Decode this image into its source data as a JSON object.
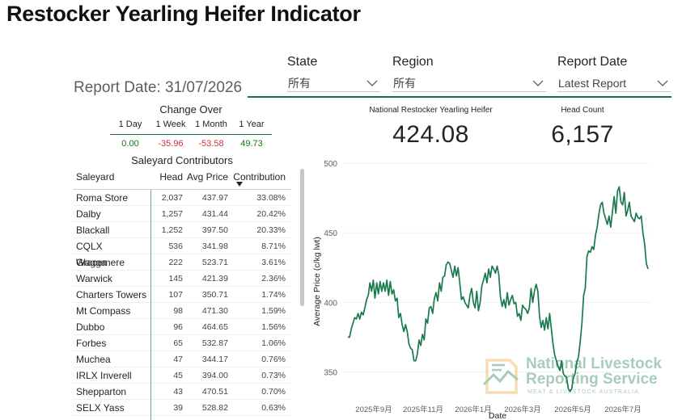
{
  "title": "Restocker Yearling Heifer Indicator",
  "filters": [
    {
      "label": "State",
      "value": "所有"
    },
    {
      "label": "Region",
      "value": "所有"
    },
    {
      "label": "Report Date",
      "value": "Latest Report"
    }
  ],
  "report_date": "Report Date: 31/07/2026",
  "change_over": {
    "title": "Change Over",
    "headers": [
      "1 Day",
      "1 Week",
      "1 Month",
      "1 Year"
    ],
    "values": [
      "0.00",
      "-35.96",
      "-53.58",
      "49.73"
    ]
  },
  "kpis": {
    "indicator_label": "National Restocker Yearling Heifer",
    "indicator_value": "424.08",
    "head_label": "Head Count",
    "head_value": "6,157"
  },
  "saleyard": {
    "title": "Saleyard Contributors",
    "columns": [
      "Saleyard",
      "Head",
      "Avg Price",
      "Contribution"
    ],
    "rows": [
      [
        "Roma Store",
        "2,037",
        "437.97",
        "33.08%"
      ],
      [
        "Dalby",
        "1,257",
        "431.44",
        "20.42%"
      ],
      [
        "Blackall",
        "1,252",
        "397.50",
        "20.33%"
      ],
      [
        "CQLX Gracemere",
        "536",
        "341.98",
        "8.71%"
      ],
      [
        "Wagga",
        "222",
        "523.71",
        "3.61%"
      ],
      [
        "Warwick",
        "145",
        "421.39",
        "2.36%"
      ],
      [
        "Charters Towers",
        "107",
        "350.71",
        "1.74%"
      ],
      [
        "Mt Compass",
        "98",
        "471.30",
        "1.59%"
      ],
      [
        "Dubbo",
        "96",
        "464.65",
        "1.56%"
      ],
      [
        "Forbes",
        "65",
        "532.87",
        "1.06%"
      ],
      [
        "Muchea",
        "47",
        "344.17",
        "0.76%"
      ],
      [
        "IRLX Inverell",
        "45",
        "394.00",
        "0.73%"
      ],
      [
        "Shepparton",
        "43",
        "470.51",
        "0.70%"
      ],
      [
        "SELX Yass",
        "39",
        "528.82",
        "0.63%"
      ]
    ]
  },
  "watermark": {
    "line1": "National Livestock",
    "line2": "Reporting Service",
    "line3": "MEAT & LIVESTOCK AUSTRALIA"
  },
  "chart_data": {
    "type": "line",
    "xlabel": "Date",
    "ylabel": "Average Price (c/kg lwt)",
    "ylim": [
      330,
      500
    ],
    "yticks": [
      350,
      400,
      450,
      500
    ],
    "xticks": [
      "2025年9月",
      "2025年11月",
      "2026年1月",
      "2026年3月",
      "2026年5月",
      "2026年7月"
    ],
    "grid": "horizontal",
    "color": "#1a7a4c",
    "series": [
      {
        "values": [
          375,
          375,
          381,
          385,
          389,
          388,
          392,
          388,
          393,
          391,
          396,
          402,
          405,
          414,
          408,
          416,
          403,
          414,
          406,
          415,
          408,
          414,
          408,
          416,
          405,
          415,
          406,
          409,
          401,
          403,
          389,
          392,
          384,
          379,
          384,
          379,
          370,
          367,
          366,
          358,
          358,
          363,
          373,
          369,
          377,
          373,
          388,
          385,
          396,
          397,
          392,
          403,
          407,
          401,
          414,
          408,
          418,
          419,
          427,
          429,
          428,
          423,
          418,
          426,
          419,
          425,
          414,
          402,
          404,
          400,
          398,
          396,
          405,
          410,
          400,
          396,
          408,
          394,
          400,
          412,
          416,
          421,
          414,
          424,
          418,
          426,
          424,
          421,
          426,
          420,
          404,
          397,
          402,
          396,
          407,
          398,
          402,
          405,
          399,
          400,
          390,
          392,
          387,
          398,
          396,
          395,
          392,
          396,
          410,
          400,
          408,
          413,
          408,
          390,
          382,
          387,
          380,
          389,
          381,
          392,
          381,
          370,
          362,
          358,
          354,
          351,
          358,
          349,
          347,
          346,
          338,
          336,
          338,
          346,
          349,
          357,
          361,
          372,
          385,
          405,
          410,
          433,
          437,
          436,
          440,
          438,
          448,
          454,
          463,
          470,
          472,
          464,
          460,
          456,
          462,
          454,
          465,
          476,
          464,
          480,
          483,
          472,
          470,
          479,
          462,
          466,
          472,
          462,
          460,
          458,
          464,
          461,
          460,
          462,
          450,
          442,
          428,
          424
        ]
      }
    ]
  }
}
